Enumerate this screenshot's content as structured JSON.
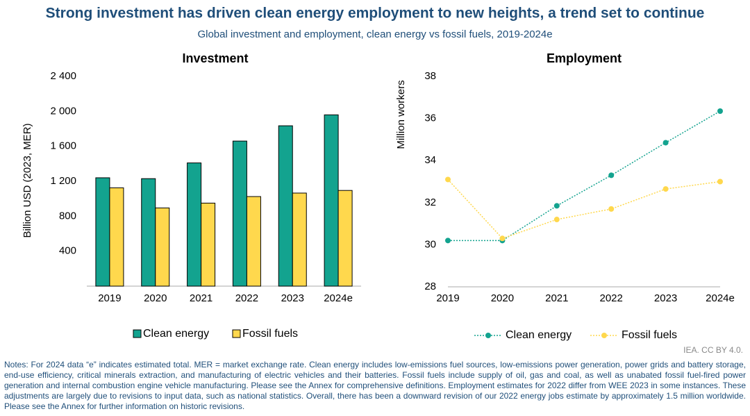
{
  "title": "Strong investment has driven clean energy employment to new heights, a trend set to continue",
  "subtitle": "Global investment and employment, clean energy vs fossil fuels, 2019-2024e",
  "credit": "IEA. CC BY 4.0.",
  "notes": "Notes: For 2024 data “e” indicates estimated total. MER = market exchange rate. Clean energy includes low-emissions fuel sources, low-emissions power generation, power grids and battery storage, end-use efficiency, critical minerals extraction, and manufacturing of electric vehicles and their batteries. Fossil fuels include supply of oil, gas and coal, as well as unabated fossil fuel-fired power generation and internal combustion engine vehicle manufacturing. Please see the Annex for comprehensive definitions. Employment estimates for 2022 differ from WEE 2023 in some instances. These adjustments are largely due to revisions to input data, such as national statistics. Overall, there has been a downward revision of our 2022 energy jobs estimate by approximately 1.5 million worldwide. Please see the Annex for further information on historic revisions.",
  "chart_data": [
    {
      "type": "bar",
      "title": "Investment",
      "y_label": "Billion USD (2023, MER)",
      "categories": [
        "2019",
        "2020",
        "2021",
        "2022",
        "2023",
        "2024e"
      ],
      "series": [
        {
          "name": "Clean energy",
          "color": "#13a38f",
          "values": [
            1240,
            1230,
            1410,
            1660,
            1835,
            1960
          ]
        },
        {
          "name": "Fossil fuels",
          "color": "#ffd84d",
          "values": [
            1125,
            895,
            950,
            1025,
            1065,
            1095
          ]
        }
      ],
      "ylim": [
        0,
        2400
      ],
      "yticks": [
        400,
        800,
        {
          "value": 1200,
          "label": "1 200"
        },
        {
          "value": 1600,
          "label": "1 600"
        },
        {
          "value": 2000,
          "label": "2 000"
        },
        {
          "value": 2400,
          "label": "2 400"
        }
      ],
      "grid": false
    },
    {
      "type": "line",
      "title": "Employment",
      "y_label": "Million workers",
      "categories": [
        "2019",
        "2020",
        "2021",
        "2022",
        "2023",
        "2024e"
      ],
      "series": [
        {
          "name": "Clean energy",
          "color": "#13a38f",
          "values": [
            30.2,
            30.2,
            31.85,
            33.3,
            34.85,
            36.35
          ]
        },
        {
          "name": "Fossil fuels",
          "color": "#ffd84d",
          "values": [
            33.1,
            30.3,
            31.2,
            31.7,
            32.65,
            33.0
          ]
        }
      ],
      "ylim": [
        28,
        38
      ],
      "yticks": [
        28,
        30,
        32,
        34,
        36,
        38
      ],
      "line_style": "dotted",
      "grid": false
    }
  ]
}
